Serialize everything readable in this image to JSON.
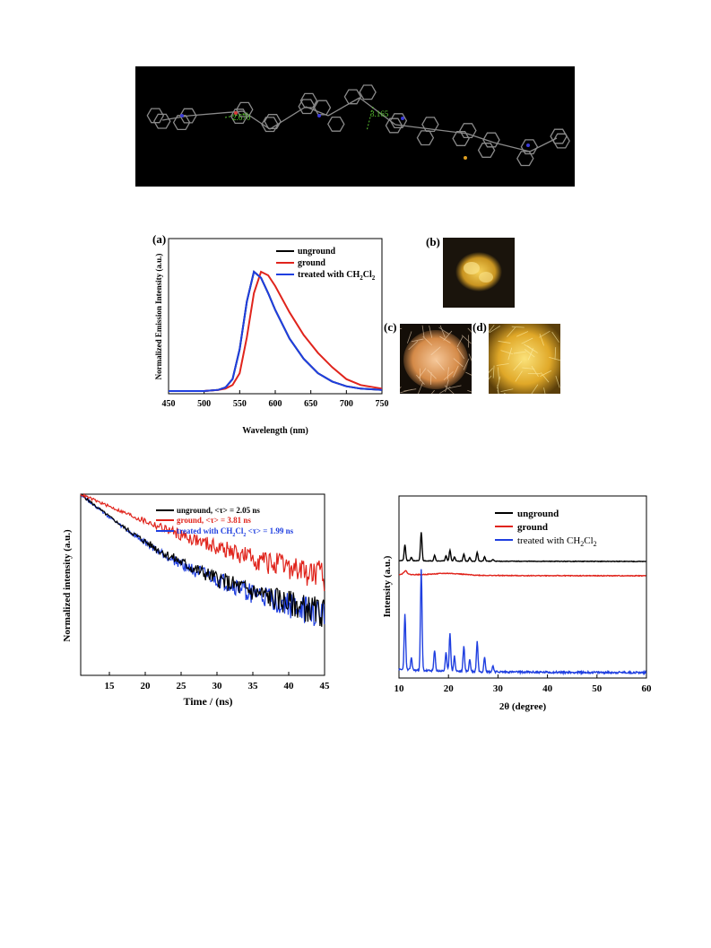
{
  "crystal_image": {
    "distance_labels": [
      "2.670",
      "3.165"
    ]
  },
  "photos": [
    {
      "label": "(b)",
      "description_color": "#d9a62a"
    },
    {
      "label": "(c)",
      "description_color": "#e0a060"
    },
    {
      "label": "(d)",
      "description_color": "#e6b840"
    }
  ],
  "chart_data": [
    {
      "type": "line",
      "panel_label": "(a)",
      "xlabel": "Wavelength (nm)",
      "ylabel": "Normalized Emission Intensity (a.u.)",
      "xlim": [
        450,
        750
      ],
      "xticks": [
        "450",
        "500",
        "550",
        "600",
        "650",
        "700",
        "750"
      ],
      "legend_placement": "top-right",
      "series": [
        {
          "name": "unground",
          "color": "#000000",
          "x": [
            450,
            500,
            520,
            530,
            540,
            550,
            560,
            570,
            580,
            590,
            600,
            620,
            640,
            660,
            680,
            700,
            720,
            750
          ],
          "y": [
            0.0,
            0.0,
            0.01,
            0.03,
            0.1,
            0.35,
            0.75,
            1.0,
            0.95,
            0.82,
            0.68,
            0.44,
            0.27,
            0.15,
            0.08,
            0.04,
            0.02,
            0.01
          ]
        },
        {
          "name": "ground",
          "color": "#e0241c",
          "x": [
            450,
            500,
            520,
            530,
            540,
            550,
            560,
            570,
            580,
            590,
            600,
            620,
            640,
            660,
            680,
            700,
            720,
            750
          ],
          "y": [
            0.0,
            0.0,
            0.01,
            0.02,
            0.05,
            0.15,
            0.45,
            0.82,
            1.0,
            0.97,
            0.88,
            0.66,
            0.47,
            0.32,
            0.2,
            0.1,
            0.05,
            0.02
          ]
        },
        {
          "name": "treated with CH2Cl2",
          "color": "#1f3fe0",
          "x": [
            450,
            500,
            520,
            530,
            540,
            550,
            560,
            570,
            580,
            590,
            600,
            620,
            640,
            660,
            680,
            700,
            720,
            750
          ],
          "y": [
            0.0,
            0.0,
            0.01,
            0.03,
            0.1,
            0.35,
            0.75,
            1.0,
            0.95,
            0.82,
            0.68,
            0.44,
            0.27,
            0.15,
            0.08,
            0.04,
            0.02,
            0.01
          ]
        }
      ],
      "legend": [
        {
          "text": "unground"
        },
        {
          "text": "ground"
        },
        {
          "text": "treated with CH",
          "sub": "2",
          "text2": "Cl",
          "sub2": "2"
        }
      ]
    },
    {
      "type": "line",
      "xlabel": "Time / (ns)",
      "ylabel": "Normalized intensity (a.u.)",
      "xlim": [
        11,
        45
      ],
      "xticks": [
        "15",
        "20",
        "25",
        "30",
        "35",
        "40",
        "45"
      ],
      "legend_placement": "top-right",
      "series": [
        {
          "name": "unground, <τ> = 2.05 ns",
          "color": "#000000",
          "tau": 2.05
        },
        {
          "name": "ground, <τ> = 3.81 ns",
          "color": "#e0241c",
          "tau": 3.81
        },
        {
          "name": "treated with CH2Cl2 <τ> = 1.99 ns",
          "color": "#1f3fe0",
          "tau": 1.99
        }
      ],
      "legend": [
        {
          "text": "unground, <τ> = 2.05 ns"
        },
        {
          "text": "ground, <τ> = 3.81 ns"
        },
        {
          "text": "treated with CH",
          "sub": "2",
          "text2": "Cl",
          "sub2": "2",
          "text3": " <τ> = 1.99 ns"
        }
      ]
    },
    {
      "type": "line",
      "xlabel": "2θ (degree)",
      "ylabel": "Intensity (a.u.)",
      "xlim": [
        10,
        60
      ],
      "xticks": [
        "10",
        "20",
        "30",
        "40",
        "50",
        "60"
      ],
      "legend_placement": "top-right",
      "peaks_2theta": [
        11.2,
        12.5,
        14.5,
        17.2,
        19.5,
        20.3,
        21.2,
        23.1,
        24.3,
        25.8,
        27.3,
        29.0
      ],
      "series": [
        {
          "name": "unground",
          "color": "#000000"
        },
        {
          "name": "ground",
          "color": "#e0241c"
        },
        {
          "name": "treated with CH2Cl2",
          "color": "#1f3fe0"
        }
      ],
      "legend": [
        {
          "text": "unground"
        },
        {
          "text": "ground"
        },
        {
          "text": "treated with CH",
          "sub": "2",
          "text2": "Cl",
          "sub2": "2"
        }
      ]
    }
  ]
}
